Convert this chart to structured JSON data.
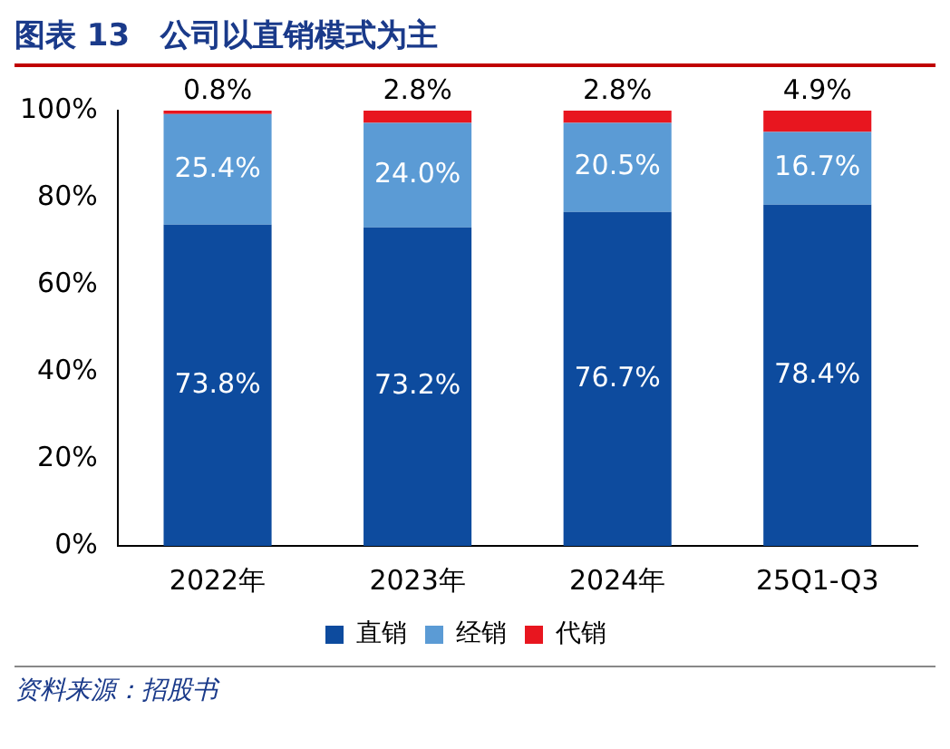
{
  "chart_data": {
    "type": "bar",
    "title": "图表 13　公司以直销模式为主",
    "categories": [
      "2022年",
      "2023年",
      "2024年",
      "25Q1-Q3"
    ],
    "stacked": true,
    "series": [
      {
        "name": "直销",
        "color": "#0d4b9e",
        "values": [
          73.8,
          73.2,
          76.7,
          78.4
        ],
        "value_labels": [
          "73.8%",
          "73.2%",
          "76.7%",
          "78.4%"
        ]
      },
      {
        "name": "经销",
        "color": "#5b9bd5",
        "values": [
          25.4,
          24.0,
          20.5,
          16.7
        ],
        "value_labels": [
          "25.4%",
          "24.0%",
          "20.5%",
          "16.7%"
        ]
      },
      {
        "name": "代销",
        "color": "#e8161f",
        "values": [
          0.8,
          2.8,
          2.8,
          4.9
        ],
        "value_labels": [
          "0.8%",
          "2.8%",
          "2.8%",
          "4.9%"
        ]
      }
    ],
    "ylim": [
      0,
      100
    ],
    "yticks": [
      {
        "value": 0,
        "label": "0%"
      },
      {
        "value": 20,
        "label": "20%"
      },
      {
        "value": 40,
        "label": "40%"
      },
      {
        "value": 60,
        "label": "60%"
      },
      {
        "value": 80,
        "label": "80%"
      },
      {
        "value": 100,
        "label": "100%"
      }
    ],
    "grid": false,
    "legend": "bottom",
    "annotations": [
      "资料来源：招股书"
    ]
  }
}
